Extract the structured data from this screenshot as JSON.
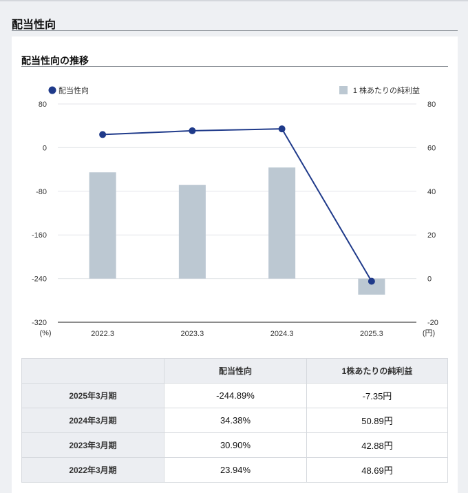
{
  "page": {
    "title": "配当性向"
  },
  "section": {
    "title": "配当性向の推移"
  },
  "chart_data": {
    "type": "bar+line",
    "categories": [
      "2022.3",
      "2023.3",
      "2024.3",
      "2025.3"
    ],
    "series": [
      {
        "name": "配当性向",
        "type": "line",
        "axis": "left",
        "values": [
          23.94,
          30.9,
          34.38,
          -244.89
        ],
        "color": "#1f3a8a"
      },
      {
        "name": "1株あたりの純利益",
        "type": "bar",
        "axis": "right",
        "values": [
          48.69,
          42.88,
          50.89,
          -7.35
        ],
        "color": "#bcc8d2"
      }
    ],
    "left_axis": {
      "ylim": [
        -320,
        80
      ],
      "ticks": [
        80,
        0,
        -80,
        -160,
        -240,
        -320
      ],
      "unit": "(%)"
    },
    "right_axis": {
      "ylim": [
        -20,
        80
      ],
      "ticks": [
        80,
        60,
        40,
        20,
        0,
        -20
      ],
      "unit": "(円)"
    },
    "grid": true,
    "legend": [
      "top-left",
      "top-right"
    ]
  },
  "table": {
    "headers": [
      "",
      "配当性向",
      "1株あたりの純利益"
    ],
    "rows": [
      {
        "label": "2025年3月期",
        "payout": "-244.89%",
        "eps": "-7.35円"
      },
      {
        "label": "2024年3月期",
        "payout": "34.38%",
        "eps": "50.89円"
      },
      {
        "label": "2023年3月期",
        "payout": "30.90%",
        "eps": "42.88円"
      },
      {
        "label": "2022年3月期",
        "payout": "23.94%",
        "eps": "48.69円"
      }
    ]
  }
}
